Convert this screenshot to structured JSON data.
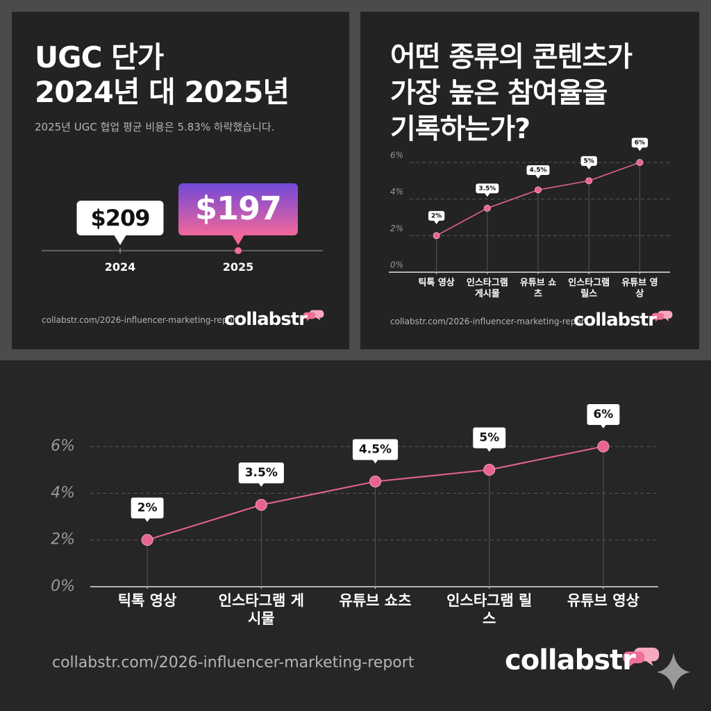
{
  "chart_data": [
    {
      "type": "comparison",
      "title": [
        "UGC 단가",
        "2024년 대 2025년"
      ],
      "subtitle": "2025년 UGC 협업 평균 비용은 5.83% 하락했습니다.",
      "categories": [
        "2024",
        "2025"
      ],
      "values": [
        209,
        197
      ],
      "value_labels": [
        "$209",
        "$197"
      ],
      "source": "collabstr.com/2026-influencer-marketing-report",
      "brand": "collabstr"
    },
    {
      "type": "line",
      "title": [
        "어떤 종류의 콘텐츠가",
        "가장 높은 참여율을",
        "기록하는가?"
      ],
      "categories": [
        "틱톡 영상",
        "인스타그램 게시물",
        "유튜브 쇼츠",
        "인스타그램 릴스",
        "유튜브 영상"
      ],
      "values": [
        2,
        3.5,
        4.5,
        5,
        6
      ],
      "value_labels": [
        "2%",
        "3.5%",
        "4.5%",
        "5%",
        "6%"
      ],
      "ylim": [
        0,
        6.4
      ],
      "yticks": [
        {
          "value": 0,
          "label": "0%"
        },
        {
          "value": 2,
          "label": "2%"
        },
        {
          "value": 4,
          "label": "4%"
        },
        {
          "value": 6,
          "label": "6%"
        }
      ],
      "grid": true,
      "color": "#e8648f",
      "source": "collabstr.com/2026-influencer-marketing-report",
      "brand": "collabstr"
    },
    {
      "type": "line",
      "categories": [
        "틱톡 영상",
        "인스타그램 게시물",
        "유튜브 쇼츠",
        "인스타그램 릴스",
        "유튜브 영상"
      ],
      "values": [
        2,
        3.5,
        4.5,
        5,
        6
      ],
      "value_labels": [
        "2%",
        "3.5%",
        "4.5%",
        "5%",
        "6%"
      ],
      "ylim": [
        0,
        6.4
      ],
      "yticks": [
        {
          "value": 0,
          "label": "0%"
        },
        {
          "value": 2,
          "label": "2%"
        },
        {
          "value": 4,
          "label": "4%"
        },
        {
          "value": 6,
          "label": "6%"
        }
      ],
      "grid": true,
      "color": "#e8648f",
      "source": "collabstr.com/2026-influencer-marketing-report",
      "brand": "collabstr"
    }
  ]
}
